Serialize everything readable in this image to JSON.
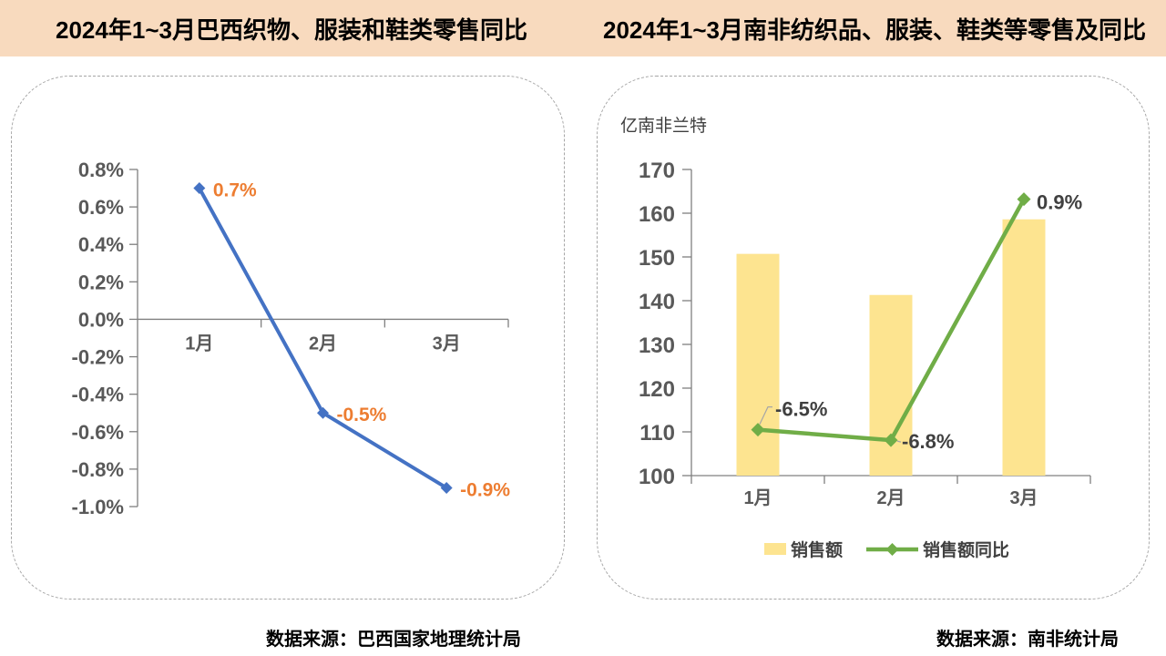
{
  "header": {
    "background": "#F8DABE"
  },
  "colors": {
    "axis": "#808080",
    "axis_text": "#595959",
    "dark_label": "#404040",
    "dashed_border": "#A6A6A6",
    "blue_line": "#4472C4",
    "orange_label": "#ED7D31",
    "yellow_bar": "#FDE490",
    "green_line": "#70AD47"
  },
  "chart_data": [
    {
      "type": "line",
      "title": "2024年1~3月巴西织物、服装和鞋类零售同比",
      "source": "数据来源：巴西国家地理统计局",
      "categories": [
        "1月",
        "2月",
        "3月"
      ],
      "series": [
        {
          "name": "零售同比",
          "values": [
            0.7,
            -0.5,
            -0.9
          ]
        }
      ],
      "data_labels": [
        "0.7%",
        "-0.5%",
        "-0.9%"
      ],
      "ylim": [
        -1.0,
        0.8
      ],
      "ytick_step": 0.2,
      "ytick_labels": [
        "0.8%",
        "0.6%",
        "0.4%",
        "0.2%",
        "0.0%",
        "-0.2%",
        "-0.4%",
        "-0.6%",
        "-0.8%",
        "-1.0%"
      ],
      "grid": "off",
      "legend": "none",
      "line_color": "#4472C4",
      "label_color": "#ED7D31"
    },
    {
      "type": "bar+line",
      "title": "2024年1~3月南非纺织品、服装、鞋类等零售及同比",
      "source": "数据来源：南非统计局",
      "unit_label": "亿南非兰特",
      "categories": [
        "1月",
        "2月",
        "3月"
      ],
      "bar_series": {
        "name": "销售额",
        "values": [
          150.7,
          141.3,
          158.6
        ],
        "color": "#FDE490"
      },
      "line_series": {
        "name": "销售额同比",
        "values_pct": [
          -6.5,
          -6.8,
          0.9
        ],
        "labels": [
          "-6.5%",
          "-6.8%",
          "0.9%"
        ],
        "plot_y_primary": [
          110.5,
          108.1,
          163.2
        ],
        "color": "#70AD47"
      },
      "ylim": [
        100,
        170
      ],
      "ytick_step": 10,
      "ytick_labels": [
        "170",
        "160",
        "150",
        "140",
        "130",
        "120",
        "110",
        "100"
      ],
      "grid": "off",
      "legend_position": "bottom"
    }
  ]
}
